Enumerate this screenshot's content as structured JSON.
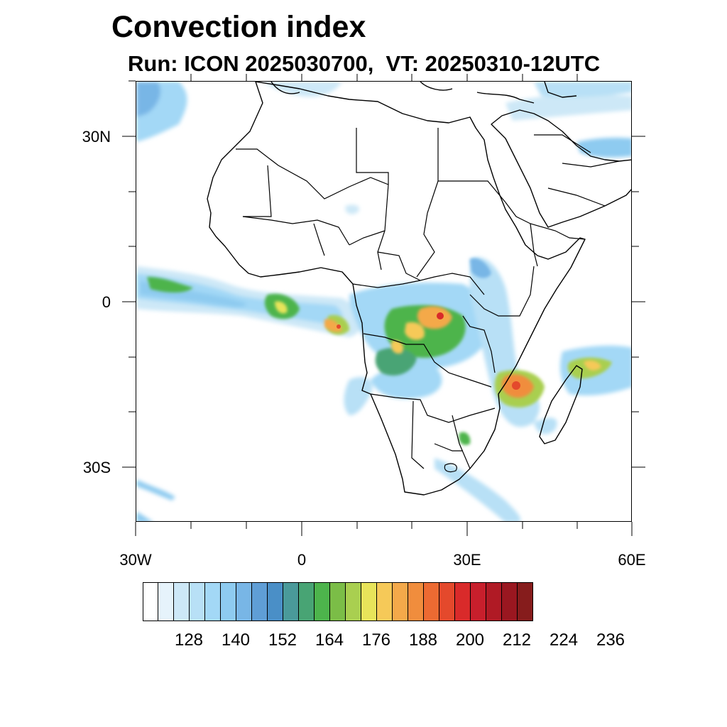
{
  "title": "Convection index",
  "subtitle": "Run: ICON 2025030700,  VT: 20250310-12UTC",
  "map": {
    "lat_labels": [
      "30N",
      "0",
      "30S"
    ],
    "lon_labels": [
      "30W",
      "0",
      "30E",
      "60E"
    ]
  },
  "colorbar": {
    "colors": [
      "#ffffff",
      "#e6f3fb",
      "#cde8f7",
      "#b8e0f6",
      "#a3d8f6",
      "#8ecbf0",
      "#78b6e6",
      "#5f9ed6",
      "#4a8fc7",
      "#4a9a9a",
      "#48a474",
      "#4db44c",
      "#7bbd47",
      "#a9cf50",
      "#e8e45a",
      "#f6c958",
      "#f4a94a",
      "#f08d3d",
      "#ec6a32",
      "#e4492c",
      "#d92a2a",
      "#c81f2c",
      "#b01a25",
      "#9a1720",
      "#861c1c"
    ],
    "labels": [
      "128",
      "140",
      "152",
      "164",
      "176",
      "188",
      "200",
      "212",
      "224",
      "236"
    ]
  }
}
